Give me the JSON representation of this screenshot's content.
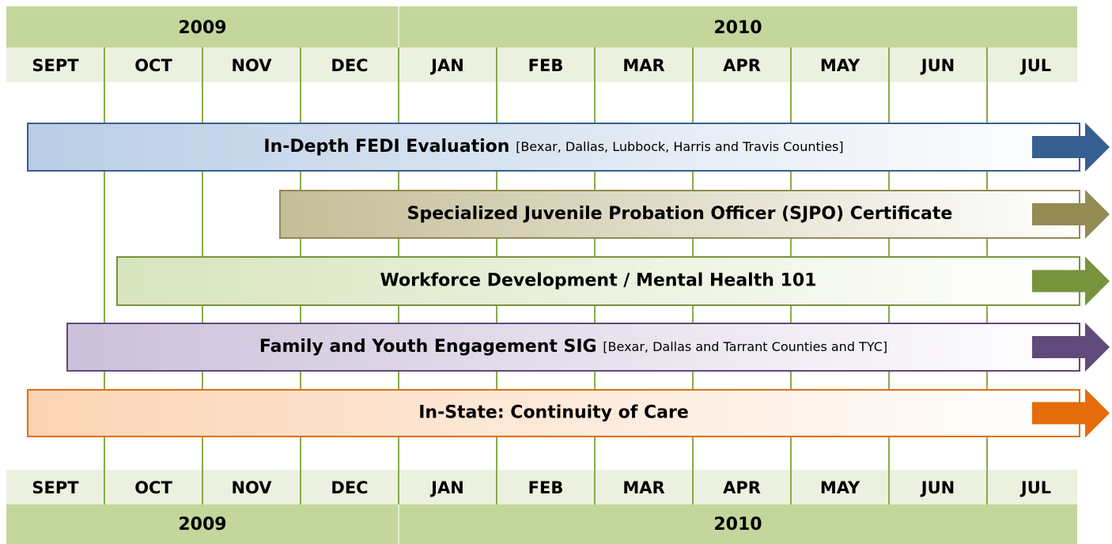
{
  "years": [
    "2009",
    "2010"
  ],
  "months": [
    "SEPT",
    "OCT",
    "NOV",
    "DEC",
    "JAN",
    "FEB",
    "MAR",
    "APR",
    "MAY",
    "JUN",
    "JUL"
  ],
  "bars": [
    {
      "label": "In-Depth FEDI Evaluation",
      "note": "[Bexar, Dallas, Lubbock, Harris and Travis Counties]"
    },
    {
      "label": "Specialized Juvenile Probation Officer (SJPO) Certificate"
    },
    {
      "label": "Workforce Development / Mental Health 101"
    },
    {
      "label": "Family and Youth Engagement SIG",
      "note": "[Bexar, Dallas and Tarrant Counties and TYC]"
    },
    {
      "label": "In-State: Continuity of Care"
    }
  ]
}
